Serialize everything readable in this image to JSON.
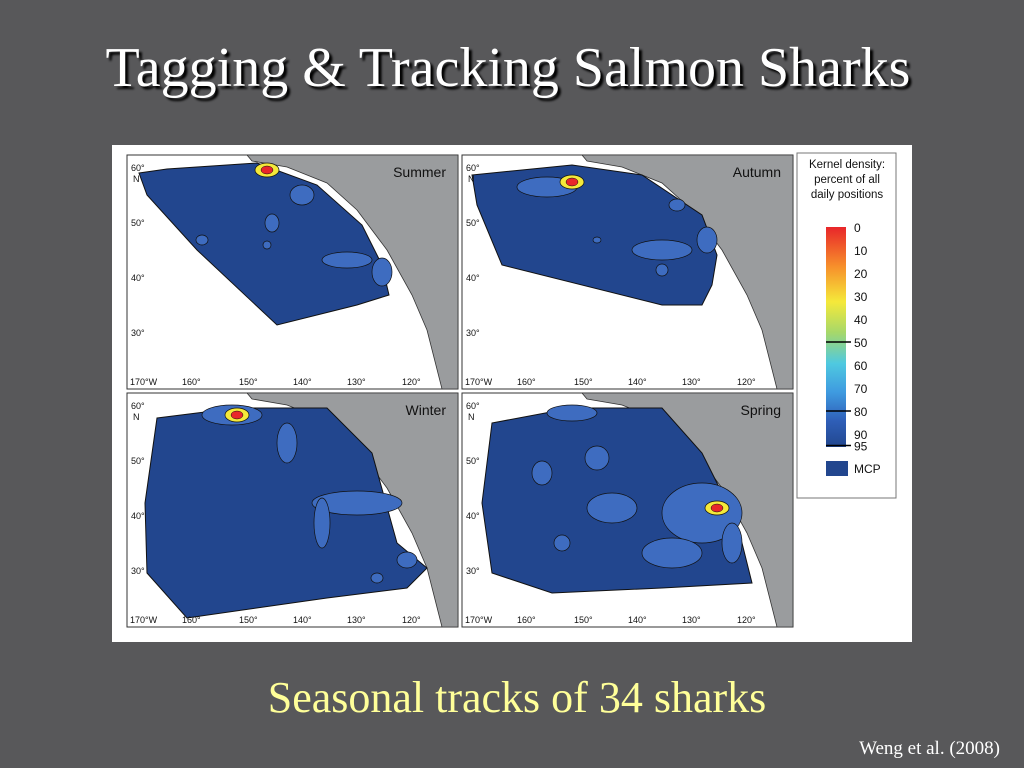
{
  "title": "Tagging & Tracking Salmon Sharks",
  "figure": {
    "panels": [
      {
        "season": "Summer"
      },
      {
        "season": "Autumn"
      },
      {
        "season": "Winter"
      },
      {
        "season": "Spring"
      }
    ],
    "lat_labels": [
      "60°",
      "50°",
      "40°",
      "30°"
    ],
    "lat_hemisphere": "N",
    "lon_labels": [
      "170°W",
      "160°",
      "150°",
      "140°",
      "130°",
      "120°"
    ],
    "legend": {
      "title_lines": [
        "Kernel density:",
        "percent of all",
        "daily positions"
      ],
      "levels": [
        0,
        10,
        20,
        30,
        40,
        50,
        60,
        70,
        80,
        90,
        95
      ],
      "mcp": "MCP"
    }
  },
  "caption": "Seasonal tracks of 34 sharks",
  "citation": "Weng et al. (2008)"
}
